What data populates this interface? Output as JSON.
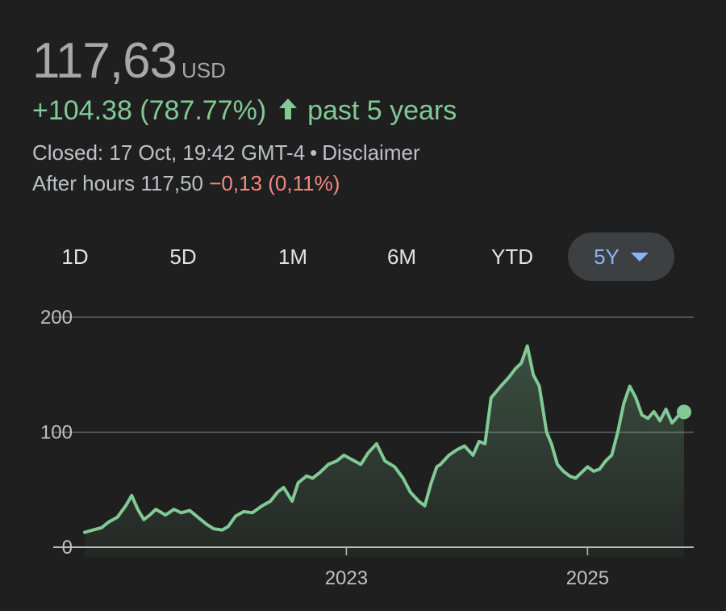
{
  "quote": {
    "price": "117,63",
    "currency": "USD",
    "change": "+104.38 (787.77%)",
    "change_period": "past 5 years",
    "closed_label": "Closed: 17 Oct, 19:42 GMT-4",
    "disclaimer": "Disclaimer",
    "after_hours_label": "After hours 117,50",
    "after_hours_change": "−0,13 (0,11%)"
  },
  "ranges": [
    {
      "label": "1D"
    },
    {
      "label": "5D"
    },
    {
      "label": "1M"
    },
    {
      "label": "6M"
    },
    {
      "label": "YTD"
    },
    {
      "label": "5Y",
      "selected": true
    }
  ],
  "colors": {
    "line": "#81c995",
    "negative": "#f28b82",
    "selected_range": "#8ab4f8"
  },
  "chart_data": {
    "type": "area",
    "yticks": [
      "200",
      "100",
      "0"
    ],
    "ytick_values": [
      200,
      100,
      0
    ],
    "xticks": [
      "2023",
      "2025"
    ],
    "xtick_values": [
      2023.0,
      2025.0
    ],
    "xlim": [
      2020.83,
      2025.8
    ],
    "ylim": [
      0,
      200
    ],
    "series": [
      {
        "x": [
          2020.83,
          2020.9,
          2020.97,
          2021.03,
          2021.1,
          2021.17,
          2021.22,
          2021.27,
          2021.32,
          2021.37,
          2021.42,
          2021.5,
          2021.57,
          2021.63,
          2021.7,
          2021.77,
          2021.84,
          2021.9,
          2021.97,
          2022.02,
          2022.08,
          2022.15,
          2022.22,
          2022.3,
          2022.37,
          2022.43,
          2022.48,
          2022.55,
          2022.6,
          2022.67,
          2022.72,
          2022.78,
          2022.85,
          2022.92,
          2022.98,
          2023.05,
          2023.12,
          2023.18,
          2023.25,
          2023.32,
          2023.4,
          2023.47,
          2023.53,
          2023.6,
          2023.65,
          2023.7,
          2023.75,
          2023.78,
          2023.85,
          2023.92,
          2023.98,
          2024.05,
          2024.1,
          2024.15,
          2024.2,
          2024.28,
          2024.35,
          2024.4,
          2024.45,
          2024.5,
          2024.55,
          2024.6,
          2024.66,
          2024.7,
          2024.75,
          2024.8,
          2024.85,
          2024.9,
          2024.95,
          2025.0,
          2025.05,
          2025.1,
          2025.15,
          2025.2,
          2025.25,
          2025.3,
          2025.35,
          2025.4,
          2025.45,
          2025.5,
          2025.55,
          2025.6,
          2025.65,
          2025.7,
          2025.75,
          2025.8
        ],
        "y": [
          13,
          15,
          17,
          22,
          26,
          36,
          45,
          33,
          24,
          28,
          33,
          28,
          33,
          30,
          32,
          26,
          20,
          16,
          15,
          18,
          27,
          31,
          30,
          36,
          40,
          48,
          52,
          40,
          56,
          62,
          60,
          65,
          72,
          75,
          80,
          76,
          72,
          82,
          90,
          75,
          70,
          60,
          48,
          40,
          36,
          55,
          70,
          72,
          80,
          85,
          88,
          80,
          92,
          90,
          130,
          140,
          148,
          155,
          160,
          175,
          150,
          140,
          100,
          90,
          72,
          66,
          62,
          60,
          65,
          70,
          66,
          68,
          75,
          80,
          100,
          125,
          140,
          130,
          115,
          112,
          118,
          110,
          120,
          108,
          114,
          117.63
        ]
      }
    ]
  }
}
